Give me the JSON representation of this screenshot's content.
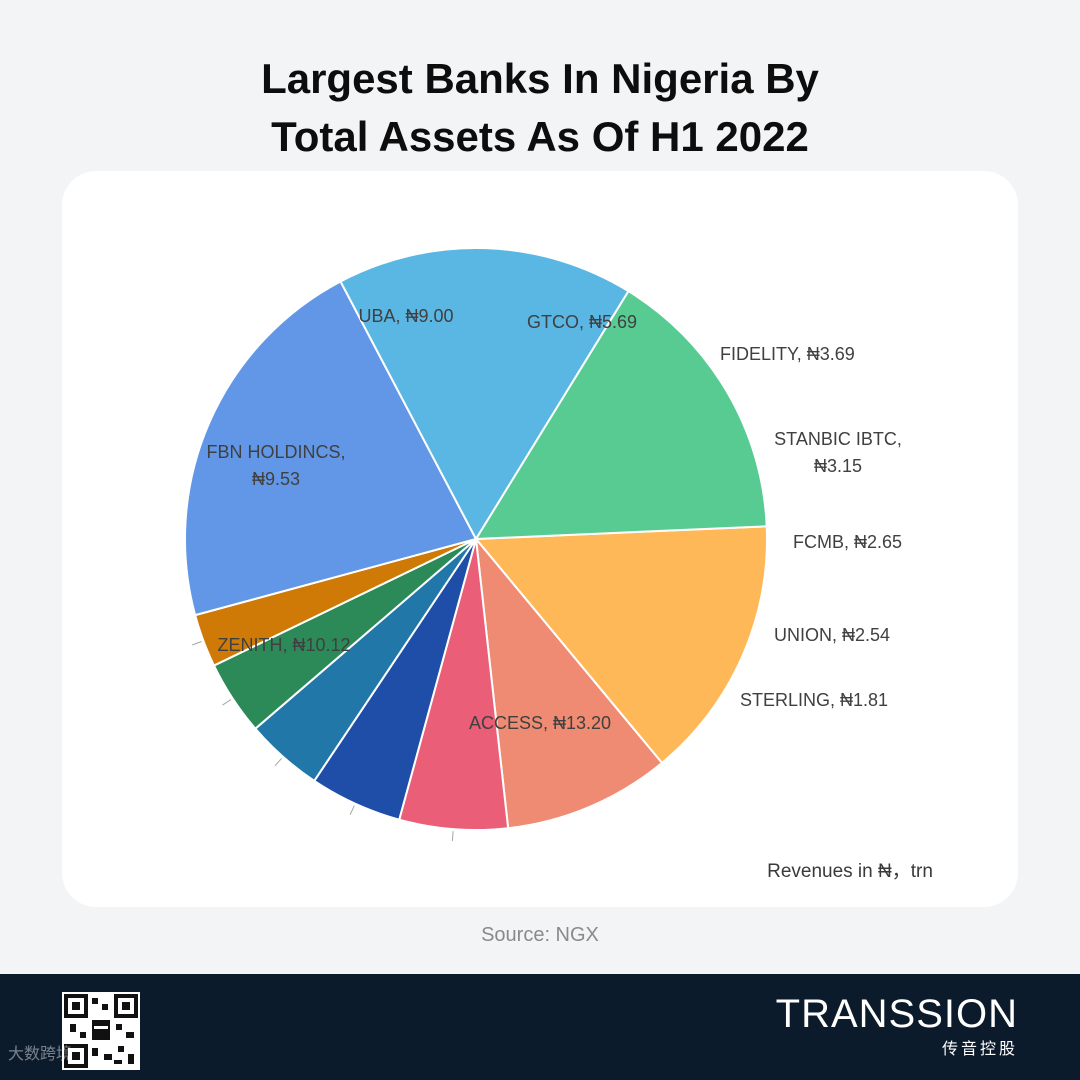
{
  "header": {
    "title_line1": "Largest Banks In Nigeria By",
    "title_line2": "Total Assets As Of H1 2022"
  },
  "chart_data": {
    "type": "pie",
    "title": "Largest Banks In Nigeria By Total Assets As Of H1 2022",
    "note": "Revenues in ₦，trn",
    "slices": [
      {
        "label": "UBA, ₦9.00",
        "name": "UBA",
        "value": 9.0,
        "color": "#ffb857"
      },
      {
        "label": "GTCO, ₦5.69",
        "name": "GTCO",
        "value": 5.69,
        "color": "#ef8b72"
      },
      {
        "label": "FIDELITY, ₦3.69",
        "name": "FIDELITY",
        "value": 3.69,
        "color": "#ea5f77"
      },
      {
        "label": "STANBIC IBTC, ₦3.15",
        "name": "STANBIC IBTC",
        "value": 3.15,
        "color": "#1f4ea8"
      },
      {
        "label": "FCMB, ₦2.65",
        "name": "FCMB",
        "value": 2.65,
        "color": "#2178a8"
      },
      {
        "label": "UNION, ₦2.54",
        "name": "UNION",
        "value": 2.54,
        "color": "#2b8a57"
      },
      {
        "label": "STERLING, ₦1.81",
        "name": "STERLING",
        "value": 1.81,
        "color": "#cf7a06"
      },
      {
        "label": "ACCESS, ₦13.20",
        "name": "ACCESS",
        "value": 13.2,
        "color": "#6197e6"
      },
      {
        "label": "ZENITH, ₦10.12",
        "name": "ZENITH",
        "value": 10.12,
        "color": "#5ab6e3"
      },
      {
        "label": "FBN HOLDINCS, ₦9.53",
        "name": "FBN HOLDINCS",
        "value": 9.53,
        "color": "#58cb93"
      }
    ]
  },
  "footer": {
    "source": "Source: NGX",
    "brand_name": "TRANSSION",
    "brand_sub": "传音控股",
    "watermark": "大数跨境"
  }
}
